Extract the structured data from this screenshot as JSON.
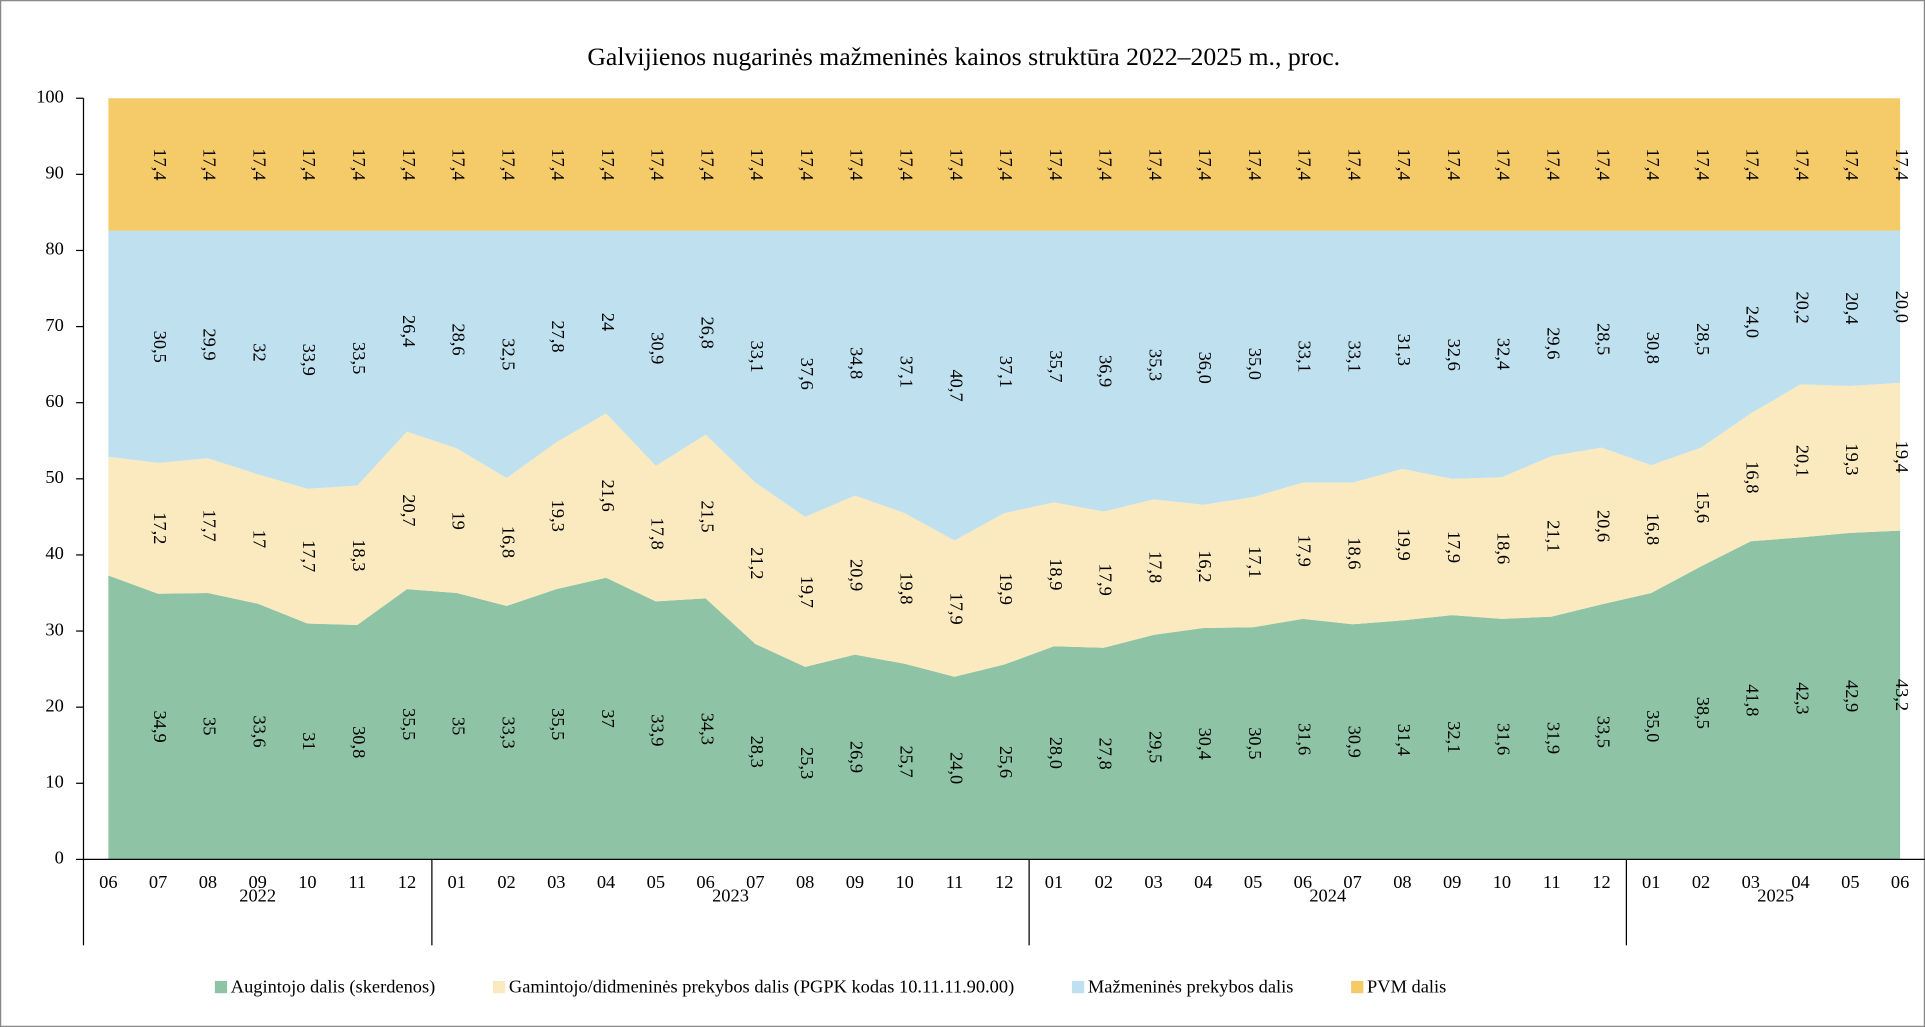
{
  "chart_data": {
    "type": "stacked_area",
    "title": "Galvijienos nugarinės mažmeninės kainos struktūra 2022–2025 m., proc.",
    "categories": [
      "06",
      "07",
      "08",
      "09",
      "10",
      "11",
      "12",
      "01",
      "02",
      "03",
      "04",
      "05",
      "06",
      "07",
      "08",
      "09",
      "10",
      "11",
      "12",
      "01",
      "02",
      "03",
      "04",
      "05",
      "06",
      "07",
      "08",
      "09",
      "10",
      "11",
      "12",
      "01",
      "02",
      "03",
      "04",
      "05",
      "06"
    ],
    "category_groups": [
      {
        "name": "2022",
        "size": 7
      },
      {
        "name": "2023",
        "size": 12
      },
      {
        "name": "2024",
        "size": 12
      },
      {
        "name": "2025",
        "size": 6
      }
    ],
    "ylim": [
      0,
      100
    ],
    "yticks": [
      0,
      10,
      20,
      30,
      40,
      50,
      60,
      70,
      80,
      90,
      100
    ],
    "legend": "bottom",
    "series": [
      {
        "name": "Augintojo dalis (skerdenos)",
        "color": "#8fc3a5",
        "values": [
          37.3,
          34.9,
          35,
          33.6,
          31,
          30.8,
          35.5,
          35,
          33.3,
          35.5,
          37,
          33.9,
          34.3,
          28.3,
          25.3,
          26.9,
          25.7,
          24.0,
          25.6,
          28.0,
          27.8,
          29.5,
          30.4,
          30.5,
          31.6,
          30.9,
          31.4,
          32.1,
          31.6,
          31.9,
          33.5,
          35.0,
          38.5,
          41.8,
          42.3,
          42.9,
          43.2
        ],
        "value_labels": [
          null,
          "34,9",
          "35",
          "33,6",
          "31",
          "30,8",
          "35,5",
          "35",
          "33,3",
          "35,5",
          "37",
          "33,9",
          "34,3",
          "28,3",
          "25,3",
          "26,9",
          "25,7",
          "24,0",
          "25,6",
          "28,0",
          "27,8",
          "29,5",
          "30,4",
          "30,5",
          "31,6",
          "30,9",
          "31,4",
          "32,1",
          "31,6",
          "31,9",
          "33,5",
          "35,0",
          "38,5",
          "41,8",
          "42,3",
          "42,9",
          "43,2"
        ]
      },
      {
        "name": "Gamintojo/didmeninės prekybos dalis (PGPK kodas 10.11.11.90.00)",
        "color": "#fbeabf",
        "values": [
          15.6,
          17.2,
          17.7,
          17,
          17.7,
          18.3,
          20.7,
          19,
          16.8,
          19.3,
          21.6,
          17.8,
          21.5,
          21.2,
          19.7,
          20.9,
          19.8,
          17.9,
          19.9,
          18.9,
          17.9,
          17.8,
          16.2,
          17.1,
          17.9,
          18.6,
          19.9,
          17.9,
          18.6,
          21.1,
          20.6,
          16.8,
          15.6,
          16.8,
          20.1,
          19.3,
          19.4
        ],
        "value_labels": [
          null,
          "17,2",
          "17,7",
          "17",
          "17,7",
          "18,3",
          "20,7",
          "19",
          "16,8",
          "19,3",
          "21,6",
          "17,8",
          "21,5",
          "21,2",
          "19,7",
          "20,9",
          "19,8",
          "17,9",
          "19,9",
          "18,9",
          "17,9",
          "17,8",
          "16,2",
          "17,1",
          "17,9",
          "18,6",
          "19,9",
          "17,9",
          "18,6",
          "21,1",
          "20,6",
          "16,8",
          "15,6",
          "16,8",
          "20,1",
          "19,3",
          "19,4"
        ]
      },
      {
        "name": "Mažmeninės prekybos dalis",
        "color": "#bfe0ef",
        "values": [
          29.7,
          30.5,
          29.9,
          32,
          33.9,
          33.5,
          26.4,
          28.6,
          32.5,
          27.8,
          24,
          30.9,
          26.8,
          33.1,
          37.6,
          34.8,
          37.1,
          40.7,
          37.1,
          35.7,
          36.9,
          35.3,
          36.0,
          35.0,
          33.1,
          33.1,
          31.3,
          32.6,
          32.4,
          29.6,
          28.5,
          30.8,
          28.5,
          24.0,
          20.2,
          20.4,
          20.0
        ],
        "value_labels": [
          null,
          "30,5",
          "29,9",
          "32",
          "33,9",
          "33,5",
          "26,4",
          "28,6",
          "32,5",
          "27,8",
          "24",
          "30,9",
          "26,8",
          "33,1",
          "37,6",
          "34,8",
          "37,1",
          "40,7",
          "37,1",
          "35,7",
          "36,9",
          "35,3",
          "36,0",
          "35,0",
          "33,1",
          "33,1",
          "31,3",
          "32,6",
          "32,4",
          "29,6",
          "28,5",
          "30,8",
          "28,5",
          "24,0",
          "20,2",
          "20,4",
          "20,0"
        ]
      },
      {
        "name": "PVM dalis",
        "color": "#f5ca69",
        "values": [
          17.4,
          17.4,
          17.4,
          17.4,
          17.4,
          17.4,
          17.4,
          17.4,
          17.4,
          17.4,
          17.4,
          17.4,
          17.4,
          17.4,
          17.4,
          17.4,
          17.4,
          17.4,
          17.4,
          17.4,
          17.4,
          17.4,
          17.4,
          17.4,
          17.4,
          17.4,
          17.4,
          17.4,
          17.4,
          17.4,
          17.4,
          17.4,
          17.4,
          17.4,
          17.4,
          17.4,
          17.4
        ],
        "value_labels": [
          null,
          "17,4",
          "17,4",
          "17,4",
          "17,4",
          "17,4",
          "17,4",
          "17,4",
          "17,4",
          "17,4",
          "17,4",
          "17,4",
          "17,4",
          "17,4",
          "17,4",
          "17,4",
          "17,4",
          "17,4",
          "17,4",
          "17,4",
          "17,4",
          "17,4",
          "17,4",
          "17,4",
          "17,4",
          "17,4",
          "17,4",
          "17,4",
          "17,4",
          "17,4",
          "17,4",
          "17,4",
          "17,4",
          "17,4",
          "17,4",
          "17,4",
          "17,4"
        ]
      }
    ]
  }
}
